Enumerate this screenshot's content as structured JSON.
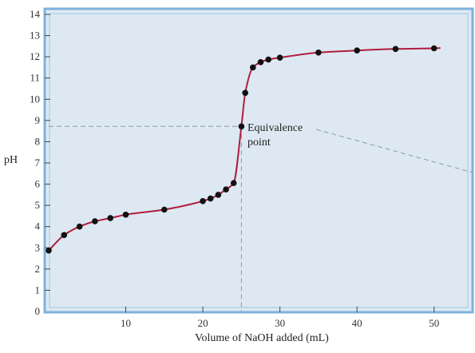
{
  "chart_data": {
    "type": "line",
    "xlabel": "Volume of NaOH added (mL)",
    "ylabel": "pH",
    "xlim": [
      0,
      55
    ],
    "ylim": [
      0,
      14
    ],
    "x_ticks": [
      10,
      20,
      30,
      40,
      50
    ],
    "x_tick_labels": [
      "10",
      "20",
      "30",
      "40",
      "50"
    ],
    "y_ticks": [
      1,
      2,
      3,
      4,
      5,
      6,
      7,
      8,
      9,
      10,
      11,
      12,
      13,
      14
    ],
    "y_tick_labels": [
      "1",
      "2",
      "3",
      "4",
      "5",
      "6",
      "7",
      "8",
      "9",
      "10",
      "11",
      "12",
      "13",
      "14"
    ],
    "y_origin_label": "0",
    "grid": false,
    "series": [
      {
        "color": "#b01c3c",
        "points": [
          [
            0,
            2.87
          ],
          [
            2,
            3.6
          ],
          [
            4,
            4.0
          ],
          [
            6,
            4.25
          ],
          [
            8,
            4.4
          ],
          [
            10,
            4.56
          ],
          [
            15,
            4.8
          ],
          [
            20,
            5.2
          ],
          [
            21,
            5.32
          ],
          [
            22,
            5.5
          ],
          [
            23,
            5.75
          ],
          [
            24,
            6.05
          ],
          [
            25,
            8.72
          ],
          [
            25.5,
            10.3
          ],
          [
            26.5,
            11.5
          ],
          [
            27.5,
            11.75
          ],
          [
            28.5,
            11.87
          ],
          [
            30,
            11.96
          ],
          [
            35,
            12.2
          ],
          [
            40,
            12.3
          ],
          [
            45,
            12.37
          ],
          [
            50,
            12.4
          ]
        ]
      }
    ],
    "annotations": [
      {
        "text_lines": [
          "Equivalence",
          "point"
        ],
        "point": [
          25,
          8.72
        ]
      }
    ],
    "colors": {
      "plot_background": "#dde8f2",
      "frame": "#7fb2dc",
      "curve": "#b01c3c",
      "marker": "#111111",
      "guide": "#8a9aa8"
    }
  }
}
